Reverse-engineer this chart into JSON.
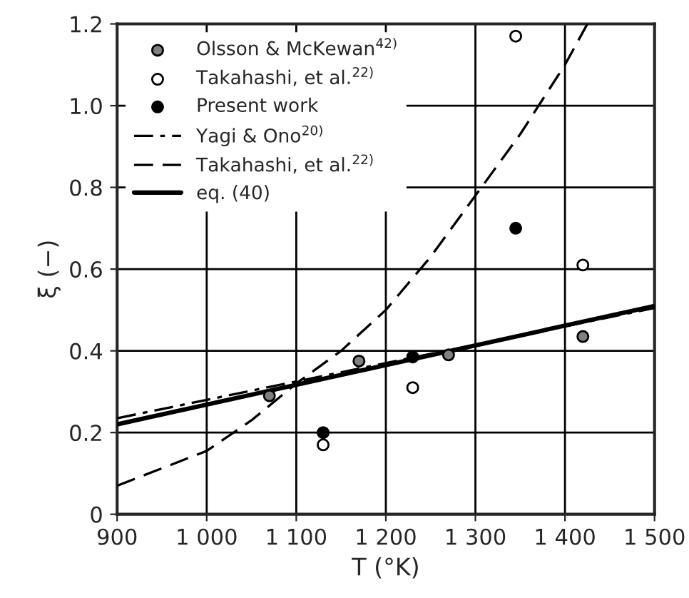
{
  "chart_data": {
    "type": "scatter",
    "xlabel": "T (°K)",
    "ylabel": "ξ (−)",
    "xlim": [
      900,
      1500
    ],
    "ylim": [
      0,
      1.2
    ],
    "xticks": [
      900,
      {
        "value": 1000,
        "label": "1 000"
      },
      {
        "value": 1100,
        "label": "1 100"
      },
      {
        "value": 1200,
        "label": "1 200"
      },
      {
        "value": 1300,
        "label": "1 300"
      },
      {
        "value": 1400,
        "label": "1 400"
      },
      {
        "value": 1500,
        "label": "1 500"
      }
    ],
    "yticks": [
      0,
      0.2,
      0.4,
      0.6,
      0.8,
      {
        "value": 1.0,
        "label": "1.0"
      },
      1.2
    ],
    "grid": true,
    "legend": "top left",
    "series": [
      {
        "name": "Olsson & McKewan$^{42)}$",
        "marker": "circle",
        "color": "#808080",
        "x": [
          1070,
          1170,
          1270,
          1420
        ],
        "values": [
          0.29,
          0.375,
          0.39,
          0.435
        ]
      },
      {
        "name": "Takahashi, et al.$^{22)}$",
        "marker": "circle",
        "color": "#ffffff",
        "x": [
          1130,
          1230,
          1345,
          1420
        ],
        "values": [
          0.17,
          0.31,
          1.17,
          0.61
        ]
      },
      {
        "name": "Present work",
        "marker": "circle",
        "color": "#000000",
        "x": [
          1130,
          1230,
          1345
        ],
        "values": [
          0.2,
          0.385,
          0.7
        ]
      },
      {
        "name": "Yagi & Ono$^{20)}$",
        "type": "line",
        "line_style": "dashdot",
        "color": "#000000",
        "x": [
          900,
          1500
        ],
        "values": [
          0.235,
          0.505
        ]
      },
      {
        "name": "Takahashi, et al.$^{22)}$",
        "type": "line",
        "line_style": "dashed",
        "color": "#000000",
        "x": [
          900,
          1000,
          1050,
          1100,
          1150,
          1200,
          1250,
          1300,
          1350,
          1400,
          1425
        ],
        "values": [
          0.07,
          0.155,
          0.23,
          0.32,
          0.4,
          0.5,
          0.63,
          0.78,
          0.93,
          1.1,
          1.2
        ]
      },
      {
        "name": "eq. (40)",
        "type": "line",
        "line_style": "solid",
        "color": "#000000",
        "x": [
          900,
          1500
        ],
        "values": [
          0.22,
          0.51
        ]
      }
    ]
  }
}
